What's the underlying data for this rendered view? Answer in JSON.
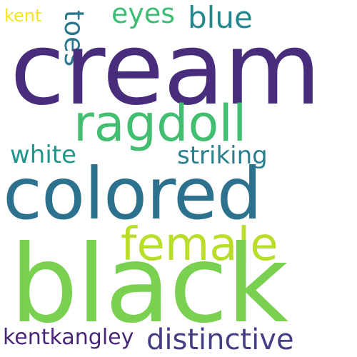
{
  "background": "#ffffff",
  "words": {
    "kent": {
      "text": "kent",
      "color": "#f4e61d"
    },
    "toes": {
      "text": "toes",
      "color": "#2a788e"
    },
    "eyes": {
      "text": "eyes",
      "color": "#3dbc74"
    },
    "blue": {
      "text": "blue",
      "color": "#24878e"
    },
    "cream": {
      "text": "cream",
      "color": "#472d7b"
    },
    "ragdoll": {
      "text": "ragdoll",
      "color": "#42be71"
    },
    "white": {
      "text": "white",
      "color": "#1f968b"
    },
    "striking": {
      "text": "striking",
      "color": "#277f8e"
    },
    "colored": {
      "text": "colored",
      "color": "#2c728e"
    },
    "female": {
      "text": "female",
      "color": "#b8de29"
    },
    "black": {
      "text": "black",
      "color": "#7ad151"
    },
    "kentkangley": {
      "text": "kentkangley",
      "color": "#482677"
    },
    "distinctive": {
      "text": "distinctive",
      "color": "#433e85"
    }
  }
}
